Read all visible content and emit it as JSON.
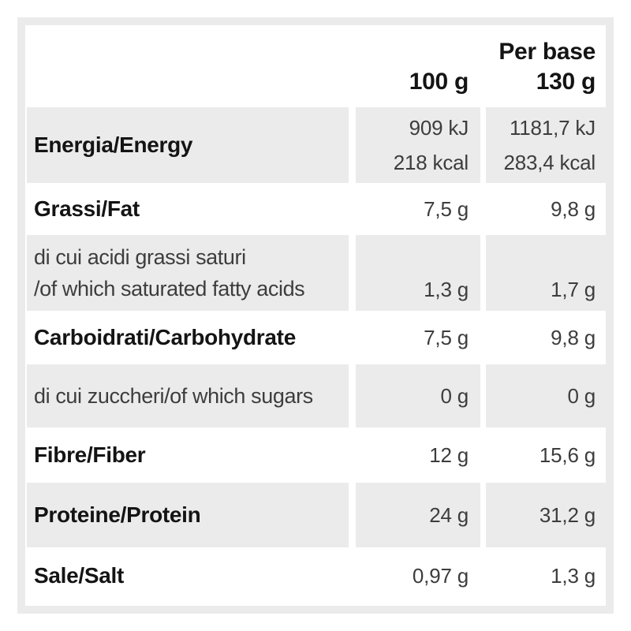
{
  "colors": {
    "shade": "#ebebeb",
    "text_bold": "#141414",
    "text_value": "#3d3d3d",
    "background": "#ffffff"
  },
  "header": {
    "per100_label": "100 g",
    "perbase_line1": "Per base",
    "perbase_line2": "130 g"
  },
  "rows": [
    {
      "name": "energy",
      "label": "Energia/Energy",
      "per100_line1": "909 kJ",
      "per100_line2": "218 kcal",
      "perbase_line1": "1181,7 kJ",
      "perbase_line2": "283,4 kcal"
    },
    {
      "name": "fat",
      "label": "Grassi/Fat",
      "per100": "7,5 g",
      "perbase": "9,8 g"
    },
    {
      "name": "saturated-fat",
      "label_line1": "di cui acidi grassi saturi",
      "label_line2": "/of which saturated fatty acids",
      "per100": "1,3 g",
      "perbase": "1,7 g"
    },
    {
      "name": "carbohydrate",
      "label": "Carboidrati/Carbohydrate",
      "per100": "7,5 g",
      "perbase": "9,8 g"
    },
    {
      "name": "sugars",
      "label": "di cui zuccheri/of which sugars",
      "per100": "0 g",
      "perbase": "0 g"
    },
    {
      "name": "fiber",
      "label": "Fibre/Fiber",
      "per100": "12 g",
      "perbase": "15,6 g"
    },
    {
      "name": "protein",
      "label": "Proteine/Protein",
      "per100": "24 g",
      "perbase": "31,2 g"
    },
    {
      "name": "salt",
      "label": "Sale/Salt",
      "per100": "0,97 g",
      "perbase": "1,3 g"
    }
  ]
}
